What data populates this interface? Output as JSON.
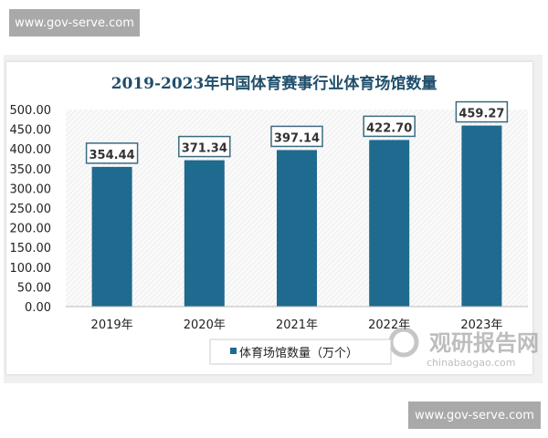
{
  "watermark_top": "www.gov-serve.com",
  "watermark_bottom": "www.gov-serve.com",
  "logo": {
    "name": "观研报告网",
    "url_text": "chinabaogao.com"
  },
  "chart_data": {
    "type": "bar",
    "title": "2019-2023年中国体育赛事行业体育场馆数量",
    "categories": [
      "2019年",
      "2020年",
      "2021年",
      "2022年",
      "2023年"
    ],
    "series": [
      {
        "name": "体育场馆数量（万个）",
        "values": [
          354.44,
          371.34,
          397.14,
          422.7,
          459.27
        ],
        "color": "#1f6a8f"
      }
    ],
    "data_labels": [
      "354.44",
      "371.34",
      "397.14",
      "422.70",
      "459.27"
    ],
    "yticks": [
      "0.00",
      "50.00",
      "100.00",
      "150.00",
      "200.00",
      "250.00",
      "300.00",
      "350.00",
      "400.00",
      "450.00",
      "500.00"
    ],
    "ylim": [
      0,
      500
    ],
    "legend": "bottom",
    "grid": false,
    "title_color": "#1f4e6b"
  }
}
